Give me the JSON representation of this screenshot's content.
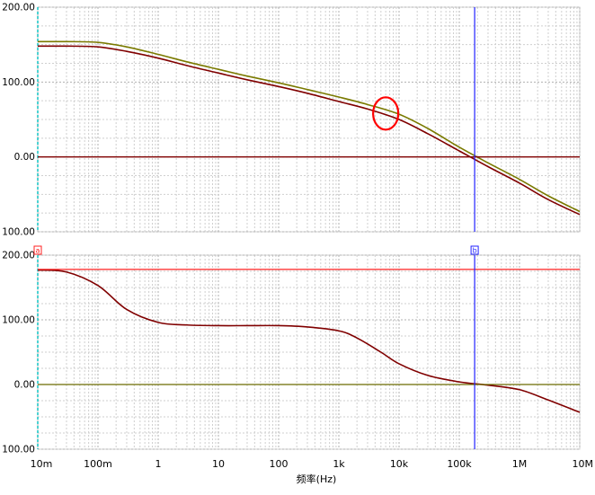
{
  "chart_data": [
    {
      "type": "line",
      "panel": "top",
      "xscale": "log",
      "xlim": [
        0.01,
        10000000
      ],
      "ylim": [
        -100,
        200
      ],
      "yticks": [
        {
          "value": 200,
          "label": "200.00"
        },
        {
          "value": 100,
          "label": "100.00"
        },
        {
          "value": 0,
          "label": "0.00"
        },
        {
          "value": -100,
          "label": "100.00"
        }
      ],
      "grid": true,
      "series": [
        {
          "color": "#7a7a00",
          "x": [
            0.01,
            0.03,
            0.1,
            0.3,
            1,
            3,
            10,
            30,
            100,
            300,
            1000,
            3000,
            10000,
            30000,
            100000,
            300000,
            1000000,
            3000000,
            10000000
          ],
          "y": [
            154,
            154,
            153,
            147,
            137,
            127,
            117,
            108,
            99,
            90,
            80,
            70,
            57,
            38,
            13,
            -8,
            -30,
            -52,
            -73
          ]
        },
        {
          "color": "#800000",
          "x": [
            0.01,
            0.03,
            0.1,
            0.3,
            1,
            3,
            10,
            30,
            100,
            300,
            1000,
            3000,
            10000,
            30000,
            100000,
            300000,
            1000000,
            3000000,
            10000000
          ],
          "y": [
            148,
            148,
            147,
            141,
            132,
            122,
            112,
            103,
            94,
            85,
            74,
            64,
            50,
            31,
            8,
            -13,
            -35,
            -57,
            -77
          ]
        },
        {
          "color": "#800000",
          "x": [
            0.01,
            10000000
          ],
          "y": [
            0,
            0
          ]
        }
      ],
      "cursor": {
        "x": 180000,
        "color": "#2222ff"
      },
      "annotation": {
        "type": "ellipse",
        "x": 6000,
        "y": 58,
        "color": "#ff0000"
      }
    },
    {
      "type": "line",
      "panel": "bottom",
      "xscale": "log",
      "xlim": [
        0.01,
        10000000
      ],
      "ylim": [
        -100,
        200
      ],
      "yticks": [
        {
          "value": 200,
          "label": "200.00"
        },
        {
          "value": 100,
          "label": "100.00"
        },
        {
          "value": 0,
          "label": "0.00"
        },
        {
          "value": -100,
          "label": "100.00"
        }
      ],
      "grid": true,
      "series": [
        {
          "color": "#800000",
          "x": [
            0.01,
            0.03,
            0.1,
            0.3,
            1,
            3,
            10,
            30,
            100,
            300,
            1000,
            2000,
            5000,
            10000,
            30000,
            100000,
            300000,
            1000000,
            3000000,
            10000000
          ],
          "y": [
            177,
            174,
            153,
            116,
            96,
            92,
            91,
            91,
            91,
            89,
            83,
            72,
            50,
            32,
            14,
            4,
            -1,
            -8,
            -24,
            -43
          ]
        },
        {
          "color": "#ff2020",
          "x": [
            0.01,
            10000000
          ],
          "y": [
            178,
            178
          ]
        },
        {
          "color": "#6b6b00",
          "x": [
            0.01,
            10000000
          ],
          "y": [
            0,
            0
          ]
        }
      ],
      "cursor": {
        "x": 180000,
        "color": "#2222ff"
      }
    }
  ],
  "xticks": [
    {
      "value": 0.01,
      "label": "10m"
    },
    {
      "value": 0.1,
      "label": "100m"
    },
    {
      "value": 1,
      "label": "1"
    },
    {
      "value": 10,
      "label": "10"
    },
    {
      "value": 100,
      "label": "100"
    },
    {
      "value": 1000,
      "label": "1k"
    },
    {
      "value": 10000,
      "label": "10k"
    },
    {
      "value": 100000,
      "label": "100k"
    },
    {
      "value": 1000000,
      "label": "1M"
    },
    {
      "value": 10000000,
      "label": "10M"
    }
  ],
  "xlabel": "频率(Hz)",
  "cursor_markers": {
    "a": "a",
    "b": "b"
  },
  "colors": {
    "left_axis": "#00c0c0",
    "cursor_b": "#2222ff",
    "marker_a": "#ff2020",
    "grid_major": "#b0b0b0",
    "grid_minor": "#cfcfcf"
  }
}
